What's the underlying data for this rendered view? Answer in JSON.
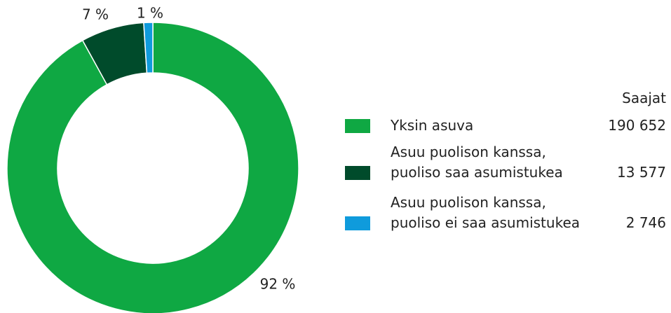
{
  "chart_data": {
    "type": "pie",
    "categories": [
      "Yksin asuva",
      "Asuu puolison kanssa,\npuoliso saa asumistukea",
      "Asuu puolison kanssa,\npuoliso ei saa asumistukea"
    ],
    "values": [
      92,
      7,
      1
    ],
    "value_labels": [
      "92 %",
      "7 %",
      "1 %"
    ],
    "colors": [
      "#0fa843",
      "#004b2b",
      "#0f9bdc"
    ],
    "legend_header": "Saajat",
    "counts": [
      "190 652",
      "13 577",
      "2 746"
    ]
  }
}
